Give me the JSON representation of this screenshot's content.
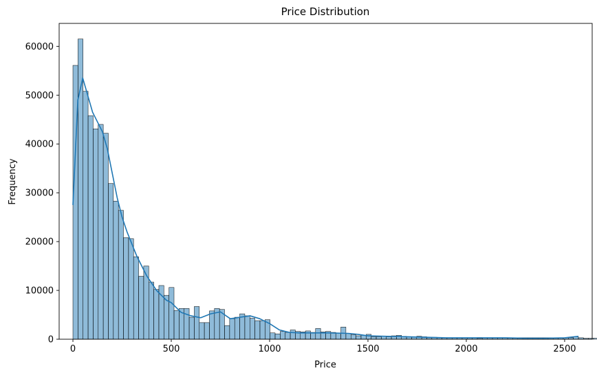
{
  "chart_data": {
    "type": "bar",
    "title": "Price Distribution",
    "xlabel": "Price",
    "ylabel": "Frequency",
    "xlim": [
      -70,
      2640
    ],
    "ylim": [
      0,
      64700
    ],
    "xticks": [
      0,
      500,
      1000,
      1500,
      2000,
      2500
    ],
    "yticks": [
      0,
      10000,
      20000,
      30000,
      40000,
      50000,
      60000
    ],
    "bin_start": 0,
    "bin_width": 25.7,
    "grid": false,
    "bar_color": "#1f77b4",
    "bar_opacity": 0.5,
    "bar_edge_color": "#000000",
    "kde_color": "#1f77b4",
    "counts": [
      56100,
      61500,
      50800,
      45800,
      43100,
      44000,
      42200,
      31900,
      28300,
      26400,
      20800,
      20600,
      16900,
      12900,
      15000,
      11700,
      10200,
      11000,
      9000,
      10600,
      5900,
      6300,
      6300,
      4500,
      6700,
      3400,
      3400,
      5800,
      6300,
      6100,
      2800,
      4200,
      4500,
      5200,
      4800,
      4300,
      3800,
      3800,
      4000,
      1300,
      1100,
      1600,
      1400,
      1900,
      1600,
      1500,
      1700,
      1400,
      2200,
      1500,
      1600,
      1400,
      1300,
      2500,
      1200,
      900,
      700,
      800,
      1000,
      500,
      500,
      600,
      500,
      700,
      800,
      600,
      500,
      400,
      600,
      500,
      300,
      400,
      300,
      300,
      300,
      300,
      300,
      300,
      300,
      300,
      200,
      300,
      300,
      300,
      300,
      300,
      300,
      300,
      300,
      300,
      300,
      300,
      300,
      300,
      300,
      300,
      300,
      300,
      300,
      500,
      300,
      200,
      200,
      200,
      200,
      200,
      200,
      200,
      200,
      300,
      300,
      300,
      300,
      300,
      300,
      300,
      300,
      300,
      300,
      500,
      900
    ],
    "kde": {
      "x": [
        0,
        25,
        50,
        75,
        100,
        125,
        150,
        175,
        200,
        225,
        250,
        275,
        300,
        325,
        350,
        375,
        400,
        425,
        450,
        475,
        500,
        550,
        600,
        650,
        700,
        750,
        800,
        850,
        900,
        950,
        1000,
        1050,
        1100,
        1150,
        1200,
        1300,
        1400,
        1450,
        1500,
        1600,
        1700,
        1800,
        1900,
        2000,
        2100,
        2200,
        2300,
        2400,
        2500,
        2570
      ],
      "y": [
        27500,
        49000,
        53500,
        50000,
        46500,
        44500,
        42500,
        39000,
        34000,
        29000,
        25000,
        22000,
        19500,
        17000,
        15000,
        13000,
        11500,
        10000,
        9000,
        8000,
        7500,
        5500,
        4800,
        4400,
        5200,
        5600,
        4200,
        4500,
        4800,
        4200,
        3200,
        1900,
        1400,
        1300,
        1300,
        1300,
        1200,
        1000,
        700,
        600,
        500,
        400,
        300,
        300,
        300,
        300,
        200,
        200,
        300,
        600
      ]
    }
  }
}
